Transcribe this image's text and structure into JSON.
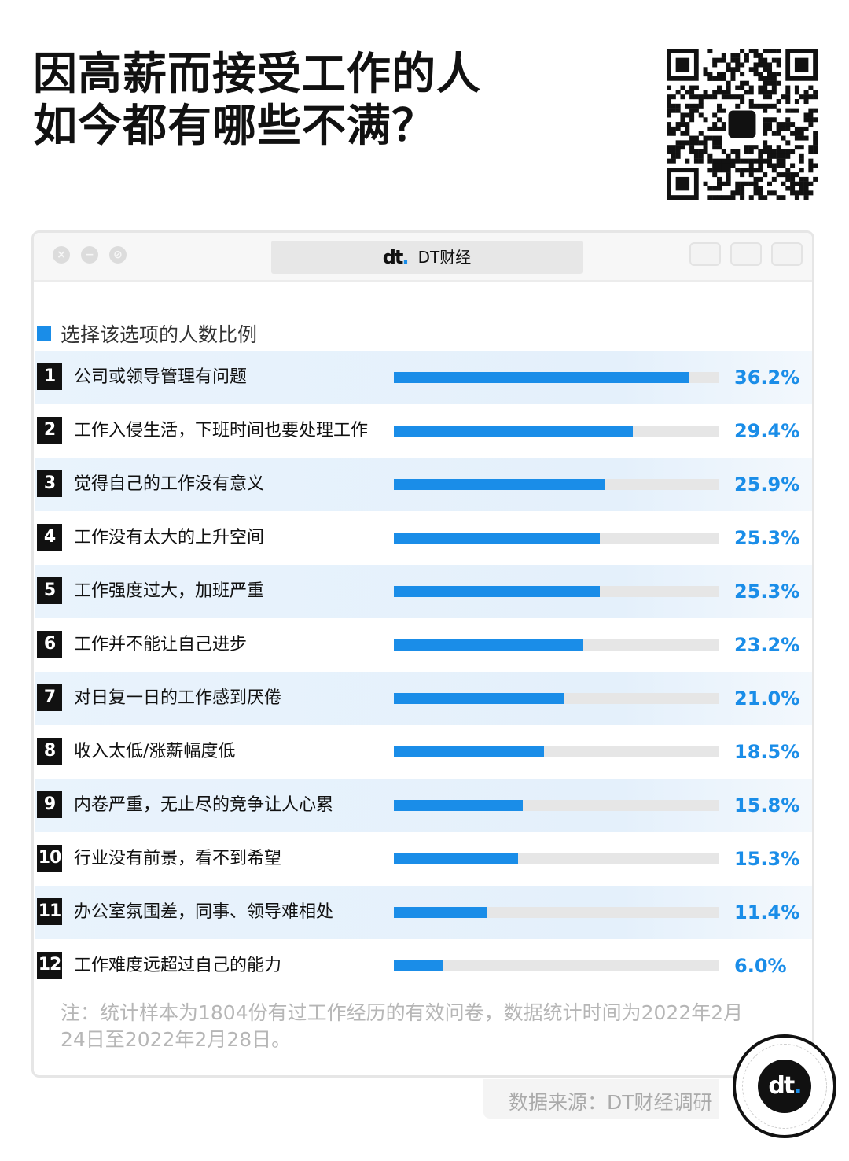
{
  "title": {
    "line1": "因高薪而接受工作的人",
    "line2": "如今都有哪些不满？"
  },
  "window": {
    "address_brand": "DT财经",
    "brand_mark": "dt"
  },
  "colors": {
    "accent": "#1a8de8",
    "track": "#e6e6e6",
    "rank_bg": "#111111"
  },
  "chart_data": {
    "type": "bar",
    "orientation": "horizontal",
    "legend": "选择该选项的人数比例",
    "xlim": [
      0,
      40
    ],
    "unit": "%",
    "categories": [
      "公司或领导管理有问题",
      "工作入侵生活，下班时间也要处理工作",
      "觉得自己的工作没有意义",
      "工作没有太大的上升空间",
      "工作强度过大，加班严重",
      "工作并不能让自己进步",
      "对日复一日的工作感到厌倦",
      "收入太低/涨薪幅度低",
      "内卷严重，无止尽的竞争让人心累",
      "行业没有前景，看不到希望",
      "办公室氛围差，同事、领导难相处",
      "工作难度远超过自己的能力"
    ],
    "ranks": [
      "1",
      "2",
      "3",
      "4",
      "5",
      "6",
      "7",
      "8",
      "9",
      "10",
      "11",
      "12"
    ],
    "values": [
      36.2,
      29.4,
      25.9,
      25.3,
      25.3,
      23.2,
      21.0,
      18.5,
      15.8,
      15.3,
      11.4,
      6.0
    ],
    "value_labels": [
      "36.2%",
      "29.4%",
      "25.9%",
      "25.3%",
      "25.3%",
      "23.2%",
      "21.0%",
      "18.5%",
      "15.8%",
      "15.3%",
      "11.4%",
      "6.0%"
    ]
  },
  "note": "注：统计样本为1804份有过工作经历的有效问卷，数据统计时间为2022年2月24日至2022年2月28日。",
  "source": "数据来源：DT财经调研"
}
